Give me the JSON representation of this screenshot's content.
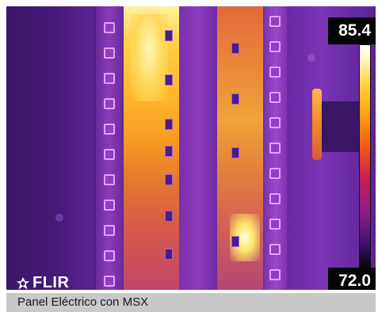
{
  "thermal": {
    "max_temp": "85.4",
    "min_temp": "72.0",
    "palette": [
      "#ffffff",
      "#ffd23a",
      "#f25a14",
      "#c81f4e",
      "#8a1e8a",
      "#3d0f6a",
      "#050508"
    ],
    "logo_text": "FLIR",
    "logo_icon": "flir-flame-icon"
  },
  "caption": {
    "text": "Panel Eléctrico con MSX"
  }
}
